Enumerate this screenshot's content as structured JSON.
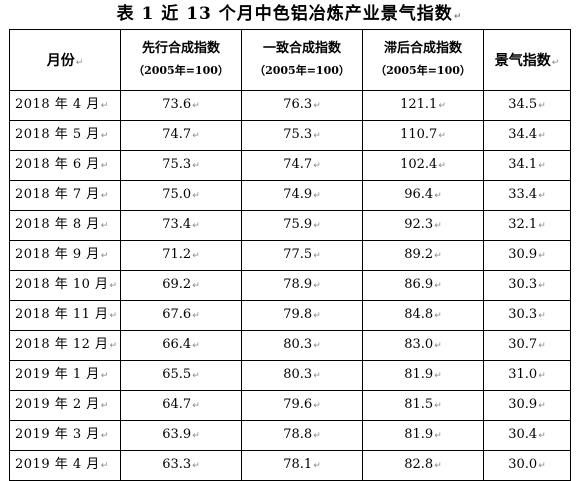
{
  "title": "表 1  近 13 个月中色铝冶炼产业景气指数",
  "columns": {
    "month": "月份",
    "leading": "先行合成指数",
    "leading_sub": "（2005年=100）",
    "coincident": "一致合成指数",
    "coincident_sub": "（2005年=100）",
    "lagging": "滞后合成指数",
    "lagging_sub": "（2005年=100）",
    "climate": "景气指数"
  },
  "rows": [
    {
      "month": "2018 年 4 月",
      "leading": "73.6",
      "coincident": "76.3",
      "lagging": "121.1",
      "climate": "34.5"
    },
    {
      "month": "2018 年 5 月",
      "leading": "74.7",
      "coincident": "75.3",
      "lagging": "110.7",
      "climate": "34.4"
    },
    {
      "month": "2018 年 6 月",
      "leading": "75.3",
      "coincident": "74.7",
      "lagging": "102.4",
      "climate": "34.1"
    },
    {
      "month": "2018 年 7 月",
      "leading": "75.0",
      "coincident": "74.9",
      "lagging": "96.4",
      "climate": "33.4"
    },
    {
      "month": "2018 年 8 月",
      "leading": "73.4",
      "coincident": "75.9",
      "lagging": "92.3",
      "climate": "32.1"
    },
    {
      "month": "2018 年 9 月",
      "leading": "71.2",
      "coincident": "77.5",
      "lagging": "89.2",
      "climate": "30.9"
    },
    {
      "month": "2018 年 10 月",
      "leading": "69.2",
      "coincident": "78.9",
      "lagging": "86.9",
      "climate": "30.3"
    },
    {
      "month": "2018 年 11 月",
      "leading": "67.6",
      "coincident": "79.8",
      "lagging": "84.8",
      "climate": "30.3"
    },
    {
      "month": "2018 年 12 月",
      "leading": "66.4",
      "coincident": "80.3",
      "lagging": "83.0",
      "climate": "30.7"
    },
    {
      "month": "2019 年 1 月",
      "leading": "65.5",
      "coincident": "80.3",
      "lagging": "81.9",
      "climate": "31.0"
    },
    {
      "month": "2019 年 2 月",
      "leading": "64.7",
      "coincident": "79.6",
      "lagging": "81.5",
      "climate": "30.9"
    },
    {
      "month": "2019 年 3 月",
      "leading": "63.9",
      "coincident": "78.8",
      "lagging": "81.9",
      "climate": "30.4"
    },
    {
      "month": "2019 年 4 月",
      "leading": "63.3",
      "coincident": "78.1",
      "lagging": "82.8",
      "climate": "30.0"
    }
  ]
}
